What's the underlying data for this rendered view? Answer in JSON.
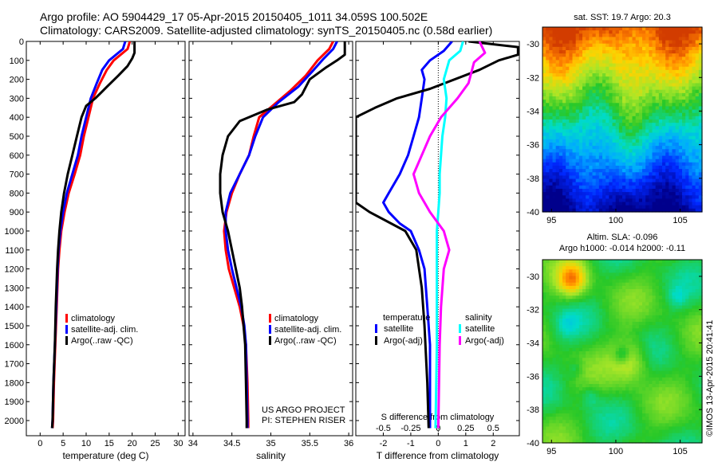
{
  "header": {
    "line1": "Argo profile: AO 5904429_17 05-Apr-2015 20150405_1011 34.059S 100.502E",
    "line2": "Climatology: CARS2009. Satellite-adjusted climatology: synTS_20150405.nc (0.58d earlier)"
  },
  "footer": {
    "project": "US ARGO PROJECT",
    "pi": "PI: STEPHEN RISER",
    "stamp": "©IMOS 13-Apr-2015 20:41:41"
  },
  "legend_tx": {
    "climatology": "climatology",
    "satellite": "satellite-adj. clim.",
    "argo": "Argo(..raw -QC)"
  },
  "legend_diff": {
    "temperature": "temperature",
    "salinity": "salinity",
    "satellite": "satellite",
    "argo": "Argo(-adj)"
  },
  "colors": {
    "climatology": "#ff0000",
    "satellite": "#0000ff",
    "argo": "#000000",
    "sal_satellite": "#00ffff",
    "sal_argo": "#ff00ff"
  },
  "maps": {
    "sst_title": "sat. SST: 19.7 Argo: 20.3",
    "sla_title1": "Altim. SLA: -0.096",
    "sla_title2": "Argo h1000: -0.014 h2000: -0.11",
    "lat_ticks": [
      "-30",
      "-32",
      "-34",
      "-36",
      "-38",
      "-40"
    ],
    "lon_ticks": [
      "95",
      "100",
      "105"
    ]
  },
  "chart_data": [
    {
      "type": "line",
      "panel": "temperature",
      "xlabel": "temperature (deg C)",
      "x_ticks": [
        "0",
        "5",
        "10",
        "15",
        "20",
        "25",
        "30"
      ],
      "xlim": [
        -3,
        31.5
      ],
      "ylim": [
        2080,
        0
      ],
      "y_ticks": [
        0,
        100,
        200,
        300,
        400,
        500,
        600,
        700,
        800,
        900,
        1000,
        1100,
        1200,
        1300,
        1400,
        1500,
        1600,
        1700,
        1800,
        1900,
        2000
      ],
      "series": [
        {
          "name": "climatology",
          "color": "#ff0000",
          "points": [
            [
              19.5,
              0
            ],
            [
              19,
              40
            ],
            [
              16,
              100
            ],
            [
              14.5,
              150
            ],
            [
              13,
              220
            ],
            [
              11.5,
              300
            ],
            [
              10.5,
              400
            ],
            [
              9.5,
              500
            ],
            [
              8.7,
              600
            ],
            [
              7.5,
              700
            ],
            [
              6.2,
              800
            ],
            [
              5.3,
              900
            ],
            [
              4.6,
              1000
            ],
            [
              4.2,
              1100
            ],
            [
              3.9,
              1200
            ],
            [
              3.6,
              1400
            ],
            [
              3.3,
              1600
            ],
            [
              3.0,
              1800
            ],
            [
              2.8,
              2000
            ],
            [
              2.7,
              2040
            ]
          ]
        },
        {
          "name": "satellite-adj. clim.",
          "color": "#0000ff",
          "points": [
            [
              18.5,
              0
            ],
            [
              18,
              40
            ],
            [
              15,
              100
            ],
            [
              13.5,
              150
            ],
            [
              12.3,
              220
            ],
            [
              11,
              300
            ],
            [
              10,
              400
            ],
            [
              9,
              500
            ],
            [
              8.2,
              600
            ],
            [
              7,
              700
            ],
            [
              5.8,
              800
            ],
            [
              5,
              900
            ],
            [
              4.4,
              1000
            ],
            [
              4,
              1100
            ],
            [
              3.8,
              1200
            ],
            [
              3.5,
              1400
            ],
            [
              3.2,
              1600
            ],
            [
              2.9,
              1800
            ],
            [
              2.7,
              2000
            ],
            [
              2.6,
              2040
            ]
          ]
        },
        {
          "name": "Argo(..raw -QC)",
          "color": "#000000",
          "points": [
            [
              20.5,
              0
            ],
            [
              20.5,
              60
            ],
            [
              20,
              90
            ],
            [
              19,
              130
            ],
            [
              17,
              180
            ],
            [
              14.5,
              240
            ],
            [
              12,
              300
            ],
            [
              10,
              340
            ],
            [
              9,
              400
            ],
            [
              8,
              500
            ],
            [
              7,
              600
            ],
            [
              6,
              700
            ],
            [
              5.2,
              800
            ],
            [
              4.6,
              900
            ],
            [
              4.2,
              1000
            ],
            [
              3.9,
              1100
            ],
            [
              3.7,
              1200
            ],
            [
              3.4,
              1400
            ],
            [
              3.2,
              1600
            ],
            [
              2.9,
              1800
            ],
            [
              2.7,
              2000
            ],
            [
              2.6,
              2040
            ]
          ]
        }
      ]
    },
    {
      "type": "line",
      "panel": "salinity",
      "xlabel": "salinity",
      "x_ticks": [
        "34",
        "34.5",
        "35",
        "35.5",
        "36"
      ],
      "xlim": [
        33.95,
        36.05
      ],
      "ylim": [
        2080,
        0
      ],
      "series": [
        {
          "name": "climatology",
          "color": "#ff0000",
          "points": [
            [
              35.8,
              0
            ],
            [
              35.75,
              40
            ],
            [
              35.6,
              100
            ],
            [
              35.45,
              180
            ],
            [
              35.25,
              260
            ],
            [
              35.05,
              330
            ],
            [
              34.85,
              400
            ],
            [
              34.78,
              500
            ],
            [
              34.72,
              600
            ],
            [
              34.6,
              700
            ],
            [
              34.5,
              800
            ],
            [
              34.43,
              900
            ],
            [
              34.4,
              1000
            ],
            [
              34.42,
              1100
            ],
            [
              34.46,
              1200
            ],
            [
              34.53,
              1300
            ],
            [
              34.6,
              1400
            ],
            [
              34.65,
              1500
            ],
            [
              34.68,
              1600
            ],
            [
              34.7,
              1800
            ],
            [
              34.71,
              2000
            ],
            [
              34.71,
              2040
            ]
          ]
        },
        {
          "name": "satellite-adj. clim.",
          "color": "#0000ff",
          "points": [
            [
              35.85,
              0
            ],
            [
              35.8,
              40
            ],
            [
              35.68,
              90
            ],
            [
              35.55,
              150
            ],
            [
              35.35,
              240
            ],
            [
              35.1,
              320
            ],
            [
              34.9,
              400
            ],
            [
              34.8,
              500
            ],
            [
              34.72,
              600
            ],
            [
              34.6,
              700
            ],
            [
              34.48,
              800
            ],
            [
              34.42,
              900
            ],
            [
              34.42,
              1000
            ],
            [
              34.45,
              1100
            ],
            [
              34.5,
              1200
            ],
            [
              34.56,
              1300
            ],
            [
              34.62,
              1400
            ],
            [
              34.66,
              1500
            ],
            [
              34.68,
              1600
            ],
            [
              34.69,
              1800
            ],
            [
              34.7,
              2000
            ],
            [
              34.7,
              2040
            ]
          ]
        },
        {
          "name": "Argo(..raw -QC)",
          "color": "#000000",
          "points": [
            [
              35.95,
              0
            ],
            [
              35.95,
              70
            ],
            [
              35.85,
              100
            ],
            [
              35.7,
              140
            ],
            [
              35.5,
              200
            ],
            [
              35.4,
              280
            ],
            [
              35.3,
              320
            ],
            [
              34.95,
              360
            ],
            [
              34.6,
              420
            ],
            [
              34.45,
              500
            ],
            [
              34.38,
              600
            ],
            [
              34.35,
              700
            ],
            [
              34.35,
              800
            ],
            [
              34.38,
              900
            ],
            [
              34.45,
              1000
            ],
            [
              34.5,
              1100
            ],
            [
              34.55,
              1200
            ],
            [
              34.6,
              1300
            ],
            [
              34.63,
              1400
            ],
            [
              34.65,
              1500
            ],
            [
              34.67,
              1600
            ],
            [
              34.68,
              1800
            ],
            [
              34.69,
              2000
            ],
            [
              34.69,
              2040
            ]
          ]
        }
      ]
    },
    {
      "type": "line",
      "panel": "difference",
      "xlabel": "T difference from climatology",
      "xlabel_top": "S difference from climatology",
      "x_ticks": [
        "-2",
        "-1",
        "0",
        "1",
        "2"
      ],
      "x_ticks_s": [
        "-0.5",
        "-0.25",
        "0",
        "0.25",
        "0.5"
      ],
      "xlim": [
        -3.0,
        2.95
      ],
      "ylim": [
        2080,
        0
      ],
      "series": [
        {
          "name": "temperature satellite",
          "color": "#0000ff",
          "points": [
            [
              0.5,
              0
            ],
            [
              0.2,
              50
            ],
            [
              -0.3,
              100
            ],
            [
              -0.6,
              150
            ],
            [
              -0.5,
              200
            ],
            [
              -0.6,
              300
            ],
            [
              -0.7,
              400
            ],
            [
              -0.9,
              500
            ],
            [
              -1.1,
              600
            ],
            [
              -1.4,
              700
            ],
            [
              -1.8,
              800
            ],
            [
              -2.0,
              850
            ],
            [
              -1.8,
              900
            ],
            [
              -1.4,
              960
            ],
            [
              -1.0,
              1000
            ],
            [
              -0.7,
              1100
            ],
            [
              -0.5,
              1200
            ],
            [
              -0.4,
              1400
            ],
            [
              -0.3,
              1600
            ],
            [
              -0.3,
              1800
            ],
            [
              -0.3,
              2040
            ]
          ]
        },
        {
          "name": "temperature Argo(-adj)",
          "color": "#000000",
          "points": [
            [
              1.1,
              0
            ],
            [
              2.9,
              30
            ],
            [
              2.9,
              70
            ],
            [
              2.2,
              100
            ],
            [
              1.5,
              150
            ],
            [
              -0.3,
              250
            ],
            [
              -1.5,
              300
            ],
            [
              -2.3,
              350
            ],
            [
              -3.0,
              400
            ],
            [
              -3.0,
              850
            ],
            [
              -2.5,
              900
            ],
            [
              -1.2,
              1000
            ],
            [
              -0.8,
              1100
            ],
            [
              -0.6,
              1300
            ],
            [
              -0.5,
              1500
            ],
            [
              -0.4,
              1800
            ],
            [
              -0.35,
              2040
            ]
          ]
        },
        {
          "name": "salinity satellite",
          "color": "#00ffff",
          "points": [
            [
              0.9,
              0
            ],
            [
              0.8,
              50
            ],
            [
              0.4,
              100
            ],
            [
              0.2,
              200
            ],
            [
              0.3,
              300
            ],
            [
              0.25,
              400
            ],
            [
              0.15,
              500
            ],
            [
              0.1,
              600
            ],
            [
              0.05,
              700
            ],
            [
              0.05,
              800
            ],
            [
              0.0,
              900
            ],
            [
              -0.05,
              1000
            ],
            [
              -0.05,
              1200
            ],
            [
              -0.05,
              1600
            ],
            [
              -0.1,
              2040
            ]
          ]
        },
        {
          "name": "salinity Argo(-adj)",
          "color": "#ff00ff",
          "points": [
            [
              1.5,
              0
            ],
            [
              1.7,
              60
            ],
            [
              1.3,
              110
            ],
            [
              1.1,
              220
            ],
            [
              0.7,
              300
            ],
            [
              0.1,
              400
            ],
            [
              -0.3,
              500
            ],
            [
              -0.6,
              600
            ],
            [
              -0.9,
              700
            ],
            [
              -0.7,
              800
            ],
            [
              -0.3,
              900
            ],
            [
              0.2,
              1000
            ],
            [
              0.4,
              1100
            ],
            [
              0.2,
              1200
            ],
            [
              0.1,
              1400
            ],
            [
              0.05,
              1600
            ],
            [
              0.0,
              2040
            ]
          ]
        }
      ]
    }
  ]
}
